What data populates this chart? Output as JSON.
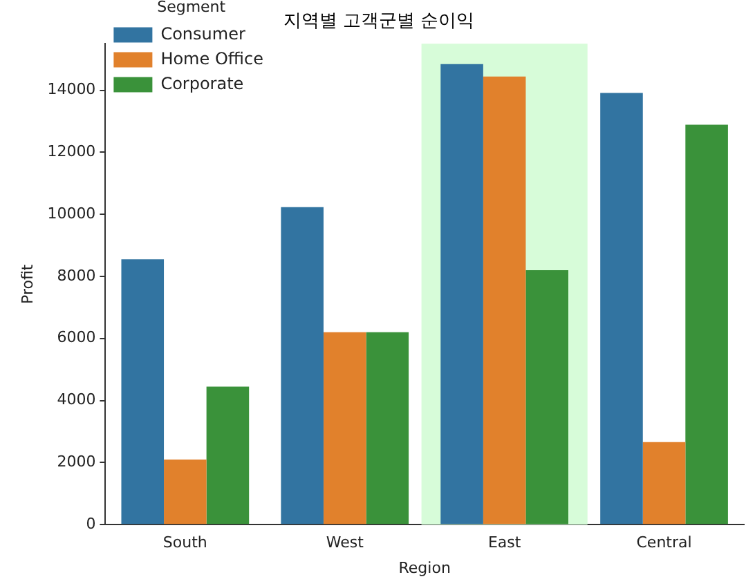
{
  "chart_data": {
    "type": "bar",
    "title": "지역별 고객군별 순이익",
    "xlabel": "Region",
    "ylabel": "Profit",
    "legend_title": "Segment",
    "categories": [
      "South",
      "West",
      "East",
      "Central"
    ],
    "series": [
      {
        "name": "Consumer",
        "color": "#3274a1",
        "values": [
          8550,
          10230,
          14840,
          13910
        ]
      },
      {
        "name": "Home Office",
        "color": "#e1812c",
        "values": [
          2100,
          6200,
          14440,
          2660
        ]
      },
      {
        "name": "Corporate",
        "color": "#3a923a",
        "values": [
          4450,
          6200,
          8200,
          12890
        ]
      }
    ],
    "ylim": [
      0,
      15500
    ],
    "yticks": [
      0,
      2000,
      4000,
      6000,
      8000,
      10000,
      12000,
      14000
    ],
    "bands": [
      {
        "axis": "x",
        "from": "East",
        "to": "East",
        "color": "#d7fcd9"
      }
    ],
    "grid": false,
    "legend": "top left"
  }
}
